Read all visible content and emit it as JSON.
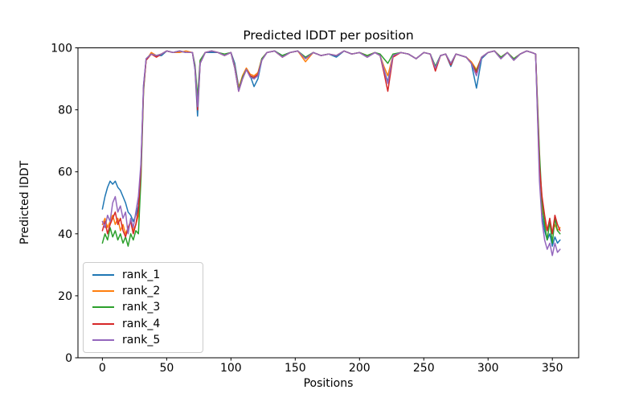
{
  "chart_data": {
    "type": "line",
    "title": "Predicted lDDT per position",
    "xlabel": "Positions",
    "ylabel": "Predicted lDDT",
    "xlim": [
      -19,
      370.5
    ],
    "ylim": [
      0,
      100
    ],
    "xticks": [
      0,
      50,
      100,
      150,
      200,
      250,
      300,
      350
    ],
    "yticks": [
      0,
      20,
      40,
      60,
      80,
      100
    ],
    "grid": false,
    "legend": {
      "position": "lower-left",
      "border_color": "#cccccc",
      "background": "#ffffff"
    },
    "x": [
      0,
      2,
      4,
      6,
      8,
      10,
      12,
      14,
      16,
      18,
      20,
      22,
      24,
      26,
      28,
      30,
      32,
      34,
      38,
      42,
      46,
      50,
      55,
      60,
      65,
      70,
      72,
      74,
      76,
      80,
      85,
      90,
      95,
      100,
      103,
      106,
      109,
      112,
      115,
      118,
      121,
      124,
      128,
      134,
      140,
      146,
      152,
      158,
      164,
      170,
      176,
      182,
      188,
      194,
      200,
      206,
      212,
      216,
      219,
      222,
      226,
      232,
      238,
      244,
      250,
      255,
      259,
      263,
      267,
      271,
      275,
      279,
      283,
      287,
      291,
      295,
      300,
      305,
      310,
      315,
      320,
      325,
      330,
      334,
      337,
      340,
      342,
      344,
      346,
      348,
      350,
      352,
      354,
      356
    ],
    "series": [
      {
        "name": "rank_1",
        "color": "#1f77b4",
        "values": [
          48,
          52,
          55,
          57,
          56,
          57,
          55,
          54,
          52,
          50,
          47,
          46,
          44,
          46,
          49,
          62,
          88,
          96,
          98,
          97.5,
          97.5,
          99,
          98.5,
          99,
          98.5,
          98.5,
          93,
          78,
          95,
          98.5,
          98.5,
          98.5,
          97.5,
          98.5,
          95,
          87.5,
          90,
          93,
          91,
          87.5,
          90,
          96,
          98.5,
          99,
          97.5,
          98.5,
          99,
          96.5,
          98.5,
          97.5,
          98,
          97,
          99,
          98,
          98.5,
          97,
          98.5,
          97.5,
          93,
          89,
          97.5,
          98.5,
          98,
          96.5,
          98.5,
          98,
          94,
          97.5,
          98,
          94,
          98,
          97.5,
          97,
          95,
          87,
          96.5,
          98.5,
          99,
          96.5,
          98.5,
          96,
          98,
          99,
          98.5,
          98,
          60,
          46,
          41,
          38,
          40,
          36,
          39,
          37,
          38
        ]
      },
      {
        "name": "rank_2",
        "color": "#ff7f0e",
        "values": [
          43,
          45,
          42,
          44,
          46,
          43,
          45,
          41,
          43,
          40,
          42,
          44,
          41,
          43,
          46,
          60,
          87,
          96,
          98.5,
          97.5,
          98,
          99,
          98.5,
          98.5,
          99,
          98.5,
          94,
          83,
          95.5,
          98.5,
          99,
          98.5,
          97.5,
          98.5,
          94,
          87,
          91,
          93.5,
          91.5,
          91,
          92,
          96.5,
          98.5,
          99,
          97,
          98.5,
          99,
          95.5,
          98.5,
          97.5,
          98,
          97.5,
          99,
          98,
          98.5,
          97.5,
          98.5,
          97.5,
          94,
          91,
          97.5,
          98.5,
          98,
          96.5,
          98.5,
          98,
          93.5,
          97.5,
          98,
          94.5,
          98,
          97.5,
          97,
          95.5,
          93,
          97,
          98.5,
          99,
          97,
          98.5,
          96.5,
          98,
          99,
          98.5,
          98,
          64,
          48,
          44,
          41,
          44,
          40,
          43,
          41,
          42
        ]
      },
      {
        "name": "rank_3",
        "color": "#2ca02c",
        "values": [
          37,
          40,
          38,
          42,
          39,
          41,
          38,
          40,
          37,
          39,
          36,
          40,
          38,
          41,
          40,
          58,
          86,
          96.5,
          98,
          97.5,
          98,
          99,
          98.5,
          99,
          98.5,
          98.5,
          94.5,
          84,
          96,
          98.5,
          99,
          98.5,
          98,
          98.5,
          93.5,
          86.5,
          90.5,
          93,
          91,
          90,
          91.5,
          96.5,
          98.5,
          99,
          97.5,
          98.5,
          99,
          97,
          98.5,
          97.5,
          98,
          97.5,
          99,
          98,
          98.5,
          97.5,
          98.5,
          98,
          96.5,
          95,
          98,
          98.5,
          98,
          96.5,
          98.5,
          98,
          94,
          97.5,
          98,
          95,
          98,
          97.5,
          97,
          95,
          92.5,
          97,
          98.5,
          99,
          97,
          98.5,
          96.5,
          98,
          99,
          98.5,
          98,
          66,
          50,
          43,
          38,
          44,
          37,
          45,
          41,
          40
        ]
      },
      {
        "name": "rank_4",
        "color": "#d62728",
        "values": [
          41,
          44,
          40,
          43,
          45,
          47,
          43,
          45,
          41,
          39,
          42,
          44,
          40,
          43,
          48,
          61,
          87,
          96,
          98,
          97,
          98,
          99,
          98.5,
          99,
          98.5,
          98.5,
          93.5,
          80,
          95,
          98.5,
          99,
          98.5,
          97.5,
          98.5,
          93.5,
          86,
          90,
          93,
          91,
          90.5,
          91.5,
          96,
          98.5,
          99,
          97,
          98.5,
          99,
          96.5,
          98.5,
          97.5,
          98,
          97.5,
          99,
          98,
          98.5,
          97,
          98.5,
          97.5,
          92,
          86,
          97,
          98.5,
          98,
          96.5,
          98.5,
          98,
          92.5,
          97.5,
          98,
          94.5,
          98,
          97.5,
          97,
          95,
          92,
          97,
          98.5,
          99,
          96.5,
          98.5,
          96,
          98,
          99,
          98.5,
          98,
          62,
          52,
          46,
          41,
          45,
          40,
          46,
          43,
          41
        ]
      },
      {
        "name": "rank_5",
        "color": "#9467bd",
        "values": [
          44,
          42,
          46,
          44,
          50,
          52,
          47,
          49,
          45,
          47,
          40,
          45,
          42,
          47,
          52,
          63,
          88,
          96.5,
          98,
          97.5,
          98,
          99,
          98.5,
          99,
          98.5,
          98.5,
          93.5,
          81,
          95,
          98.5,
          99,
          98.5,
          97.5,
          98.5,
          93.5,
          86,
          90,
          93,
          90.5,
          90,
          91,
          96,
          98.5,
          99,
          97,
          98.5,
          99,
          96.5,
          98.5,
          97.5,
          98,
          97.5,
          99,
          98,
          98.5,
          97,
          98.5,
          97.5,
          93,
          88.5,
          97.5,
          98.5,
          98,
          96.5,
          98.5,
          98,
          93.5,
          97.5,
          98,
          95,
          98,
          97.5,
          97,
          95,
          91,
          97,
          98.5,
          99,
          96.5,
          98.5,
          96,
          98,
          99,
          98.5,
          98,
          57,
          44,
          38,
          35,
          37,
          33,
          37,
          34,
          35
        ]
      }
    ]
  }
}
